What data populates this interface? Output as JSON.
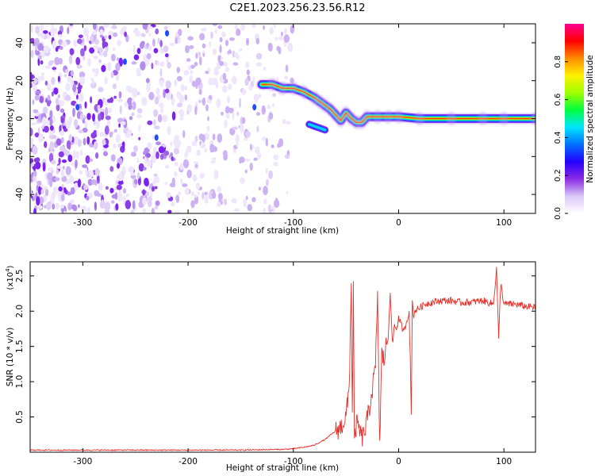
{
  "title": "C2E1.2023.256.23.56.R12",
  "chart_data": [
    {
      "type": "heatmap",
      "xlabel": "Height of straight line (km)",
      "ylabel": "Frequency (Hz)",
      "xlim": [
        -350,
        130
      ],
      "ylim": [
        -50,
        50
      ],
      "xticks": [
        -300,
        -200,
        -100,
        0,
        100
      ],
      "yticks": [
        -40,
        -20,
        0,
        20,
        40
      ],
      "colorbar": {
        "label": "Normalized spectral amplitude",
        "range": [
          0,
          1
        ],
        "ticks": [
          "0.0",
          "0.2",
          "0.4",
          "0.6",
          "0.8"
        ],
        "colors": [
          "#ffffff",
          "#d9c8f7",
          "#8a2be2",
          "#2400ff",
          "#0070ff",
          "#00e5ff",
          "#00ff40",
          "#a0ff00",
          "#fff000",
          "#ff8c00",
          "#ff0000",
          "#ff0090"
        ]
      },
      "signal_track": {
        "x": [
          -130,
          -120,
          -110,
          -100,
          -90,
          -80,
          -75,
          -70,
          -65,
          -60,
          -55,
          -50,
          -45,
          -40,
          -35,
          -30,
          -20,
          -10,
          0,
          20,
          50,
          80,
          100,
          130
        ],
        "y": [
          18,
          18,
          16,
          16,
          14,
          11,
          9,
          7,
          5,
          2,
          -1,
          3,
          0,
          -2,
          -2,
          1,
          1,
          1,
          1,
          0,
          0,
          0,
          0,
          0
        ]
      },
      "secondary_track": {
        "x": [
          -85,
          -80,
          -75,
          -70
        ],
        "y": [
          -3,
          -4,
          -5,
          -6
        ]
      },
      "noise_region": {
        "x_from": -350,
        "x_to": -100
      }
    },
    {
      "type": "line",
      "xlabel": "Height of straight line (km)",
      "ylabel": "SNR (10 * v/v)",
      "y_multiplier": "(x10",
      "y_multiplier_exp": "4",
      "y_multiplier_close": ")",
      "xlim": [
        -350,
        130
      ],
      "ylim": [
        0,
        2.7
      ],
      "xticks": [
        -300,
        -200,
        -100,
        0,
        100
      ],
      "yticks": [
        0.5,
        1.0,
        1.5,
        2.0,
        2.5
      ],
      "color": "#e8302a",
      "series": {
        "x": [
          -350,
          -250,
          -150,
          -110,
          -100,
          -90,
          -80,
          -70,
          -60,
          -55,
          -50,
          -47,
          -45,
          -44,
          -43,
          -42,
          -41,
          -40,
          -38,
          -35,
          -32,
          -30,
          -28,
          -26,
          -24,
          -22,
          -20,
          -18,
          -16,
          -14,
          -12,
          -10,
          -8,
          -6,
          -4,
          -2,
          0,
          5,
          10,
          12,
          13,
          14,
          15,
          20,
          25,
          30,
          40,
          50,
          60,
          70,
          80,
          90,
          93,
          95,
          97,
          100,
          110,
          120,
          130
        ],
        "y": [
          0.03,
          0.03,
          0.03,
          0.04,
          0.05,
          0.07,
          0.1,
          0.18,
          0.3,
          0.35,
          0.5,
          0.9,
          2.4,
          0.5,
          2.4,
          0.1,
          0.3,
          0.4,
          0.35,
          0.2,
          0.3,
          0.45,
          0.6,
          0.8,
          1.0,
          1.2,
          2.25,
          0.1,
          1.4,
          1.3,
          1.5,
          1.6,
          2.3,
          1.5,
          1.8,
          1.75,
          1.9,
          1.7,
          2.0,
          0.5,
          2.2,
          1.9,
          2.0,
          2.05,
          2.1,
          2.12,
          2.15,
          2.15,
          2.12,
          2.13,
          2.15,
          2.1,
          2.6,
          1.6,
          2.4,
          2.1,
          2.1,
          2.07,
          2.05
        ]
      }
    }
  ]
}
